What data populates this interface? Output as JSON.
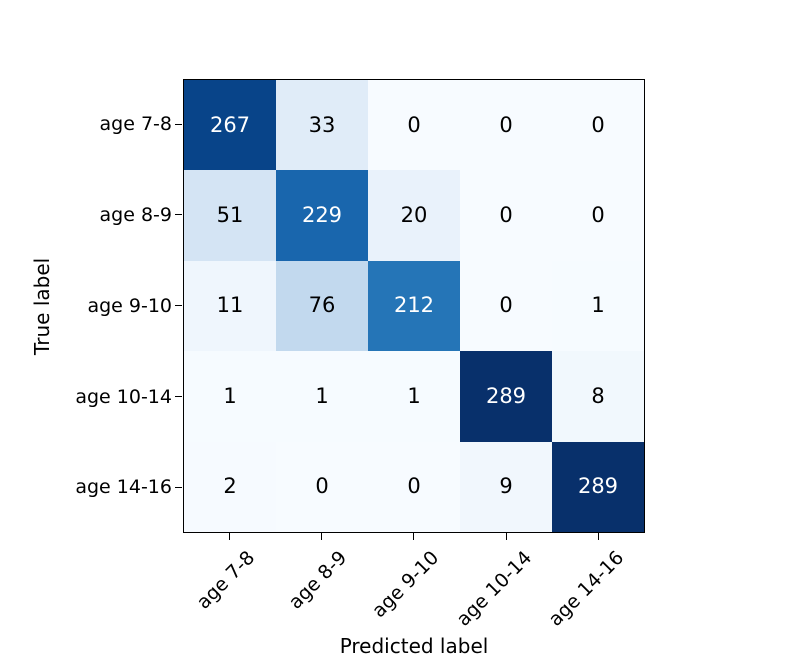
{
  "chart_data": {
    "type": "heatmap",
    "title": "",
    "xlabel": "Predicted label",
    "ylabel": "True label",
    "categories": [
      "age 7-8",
      "age 8-9",
      "age 9-10",
      "age 10-14",
      "age 14-16"
    ],
    "matrix": [
      [
        267,
        33,
        0,
        0,
        0
      ],
      [
        51,
        229,
        20,
        0,
        0
      ],
      [
        11,
        76,
        212,
        0,
        1
      ],
      [
        1,
        1,
        1,
        289,
        8
      ],
      [
        2,
        0,
        0,
        9,
        289
      ]
    ],
    "colormap": "Blues",
    "vmin": 0,
    "vmax": 289,
    "cell_colors": [
      [
        "#084489",
        "#e0ecf8",
        "#f7fbff",
        "#f7fbff",
        "#f7fbff"
      ],
      [
        "#d4e4f4",
        "#1966ad",
        "#e9f2fb",
        "#f7fbff",
        "#f7fbff"
      ],
      [
        "#eff6fd",
        "#c2d9ee",
        "#2575b7",
        "#f7fbff",
        "#f6fbff"
      ],
      [
        "#f6fbff",
        "#f6fbff",
        "#f6fbff",
        "#08306b",
        "#f1f8fd"
      ],
      [
        "#f6faff",
        "#f7fbff",
        "#f7fbff",
        "#f1f7fd",
        "#08306b"
      ]
    ],
    "cell_text_colors": [
      [
        "#ffffff",
        "#000000",
        "#000000",
        "#000000",
        "#000000"
      ],
      [
        "#000000",
        "#ffffff",
        "#000000",
        "#000000",
        "#000000"
      ],
      [
        "#000000",
        "#000000",
        "#ffffff",
        "#000000",
        "#000000"
      ],
      [
        "#000000",
        "#000000",
        "#000000",
        "#ffffff",
        "#000000"
      ],
      [
        "#000000",
        "#000000",
        "#000000",
        "#000000",
        "#ffffff"
      ]
    ],
    "axis_color": "#000000",
    "background_color": "#ffffff",
    "legend": "none",
    "grid": false
  }
}
